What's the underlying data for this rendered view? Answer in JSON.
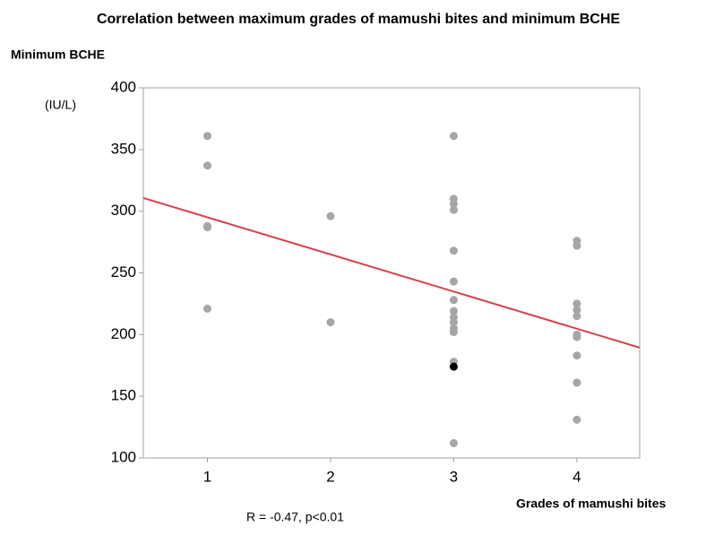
{
  "chart_data": {
    "type": "scatter",
    "title": "Correlation between maximum grades of mamushi bites and minimum BCHE",
    "y_label": "Minimum BCHE",
    "y_unit": "(IU/L)",
    "x_label": "Grades of mamushi bites",
    "annotation": "R = -0.47, p<0.01",
    "xlim": [
      0.48,
      4.51
    ],
    "xticks": [
      1,
      2,
      3,
      4
    ],
    "ylim": [
      100,
      400
    ],
    "yticks": [
      100,
      150,
      200,
      250,
      300,
      350,
      400
    ],
    "series": [
      {
        "color": "#a6a6a6",
        "x": [
          1,
          1,
          1,
          1,
          1,
          2,
          2,
          3,
          3,
          3,
          3,
          3,
          3,
          3,
          3,
          3,
          3,
          3,
          3,
          3,
          3,
          4,
          4,
          4,
          4,
          4,
          4,
          4,
          4,
          4,
          4
        ],
        "y": [
          361,
          337,
          288,
          287,
          221,
          296,
          210,
          361,
          310,
          306,
          301,
          268,
          243,
          228,
          219,
          214,
          210,
          205,
          202,
          178,
          112,
          276,
          272,
          225,
          220,
          215,
          200,
          198,
          183,
          161,
          131
        ]
      },
      {
        "color": "#000000",
        "x": [
          3
        ],
        "y": [
          174
        ]
      }
    ],
    "fit_line": {
      "color": "#d9404a",
      "x": [
        0.48,
        4.51
      ],
      "y": [
        310.7,
        189.4
      ]
    }
  }
}
